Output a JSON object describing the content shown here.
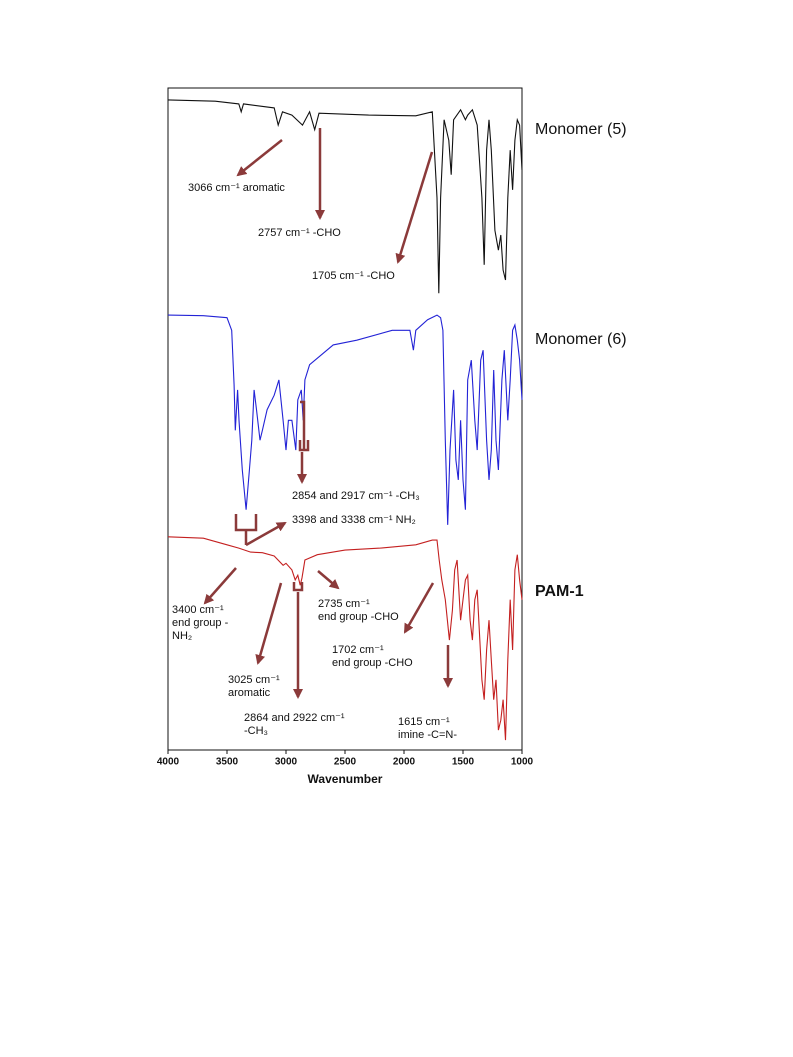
{
  "chart_data": {
    "type": "line",
    "xlabel": "Wavenumber",
    "xlim": [
      4000,
      1000
    ],
    "xticks": [
      4000,
      3500,
      3000,
      2500,
      2000,
      1500,
      1000
    ],
    "ylim": [
      0,
      100
    ],
    "series": [
      {
        "name": "Monomer (5)",
        "color": "#111111",
        "x": [
          4000,
          3600,
          3400,
          3380,
          3360,
          3100,
          3066,
          3030,
          2950,
          2860,
          2800,
          2757,
          2720,
          2300,
          1900,
          1760,
          1720,
          1705,
          1690,
          1660,
          1620,
          1600,
          1580,
          1520,
          1480,
          1460,
          1420,
          1380,
          1340,
          1320,
          1300,
          1280,
          1260,
          1230,
          1200,
          1180,
          1160,
          1140,
          1120,
          1100,
          1080,
          1060,
          1040,
          1020,
          1000
        ],
        "values": [
          98.2,
          98.0,
          97.6,
          96.4,
          97.6,
          97.0,
          94.4,
          96.4,
          95.9,
          94.4,
          96.4,
          93.7,
          96.2,
          95.9,
          95.8,
          96.4,
          83.4,
          69.0,
          83.4,
          95.2,
          92.1,
          86.9,
          95.2,
          96.7,
          95.2,
          95.9,
          96.7,
          94.4,
          83.4,
          73.3,
          90.6,
          95.2,
          90.6,
          78.5,
          75.5,
          77.8,
          72.5,
          71.0,
          83.4,
          90.6,
          84.6,
          92.1,
          95.2,
          94.4,
          87.6
        ]
      },
      {
        "name": "Monomer (6)",
        "color": "#2323d6",
        "x": [
          4000,
          3700,
          3500,
          3460,
          3440,
          3430,
          3410,
          3398,
          3370,
          3338,
          3310,
          3290,
          3270,
          3250,
          3220,
          3200,
          3160,
          3100,
          3060,
          3025,
          3000,
          2980,
          2950,
          2917,
          2900,
          2870,
          2854,
          2840,
          2800,
          2700,
          2600,
          2400,
          2100,
          1950,
          1920,
          1900,
          1800,
          1720,
          1690,
          1670,
          1650,
          1630,
          1610,
          1580,
          1560,
          1540,
          1520,
          1500,
          1480,
          1460,
          1430,
          1400,
          1380,
          1350,
          1330,
          1300,
          1280,
          1260,
          1240,
          1220,
          1200,
          1170,
          1150,
          1120,
          1100,
          1080,
          1060,
          1040,
          1020,
          1000
        ],
        "values": [
          65.7,
          65.6,
          65.3,
          63.4,
          55.1,
          48.3,
          54.4,
          49.8,
          42.3,
          36.3,
          42.3,
          46.8,
          54.4,
          51.4,
          46.8,
          48.3,
          51.4,
          53.6,
          55.9,
          49.8,
          45.3,
          49.8,
          49.8,
          45.3,
          52.9,
          54.4,
          49.8,
          55.9,
          58.2,
          59.7,
          61.2,
          61.9,
          63.4,
          63.4,
          60.4,
          63.4,
          65.0,
          65.7,
          65.3,
          63.4,
          46.8,
          34.0,
          45.3,
          54.4,
          43.8,
          40.8,
          49.8,
          40.8,
          36.3,
          55.9,
          58.9,
          49.8,
          45.3,
          58.9,
          60.4,
          46.8,
          40.8,
          45.3,
          57.4,
          46.8,
          42.3,
          55.9,
          60.4,
          49.8,
          55.9,
          63.4,
          64.2,
          61.9,
          58.9,
          52.9
        ]
      },
      {
        "name": "PAM-1",
        "color": "#c42020",
        "x": [
          4000,
          3700,
          3500,
          3400,
          3300,
          3200,
          3100,
          3025,
          3000,
          2950,
          2922,
          2900,
          2880,
          2864,
          2840,
          2735,
          2500,
          2200,
          1900,
          1760,
          1720,
          1702,
          1680,
          1650,
          1615,
          1590,
          1570,
          1550,
          1520,
          1500,
          1480,
          1460,
          1440,
          1420,
          1400,
          1380,
          1340,
          1320,
          1300,
          1280,
          1260,
          1240,
          1220,
          1200,
          1180,
          1160,
          1140,
          1120,
          1100,
          1080,
          1060,
          1040,
          1020,
          1000
        ],
        "values": [
          32.2,
          32.0,
          31.0,
          30.5,
          29.9,
          29.8,
          29.3,
          27.9,
          28.2,
          27.2,
          25.7,
          26.4,
          24.9,
          26.0,
          28.7,
          29.5,
          30.2,
          30.5,
          31.0,
          31.7,
          31.7,
          28.7,
          25.7,
          22.7,
          16.6,
          21.1,
          27.2,
          28.7,
          19.6,
          22.7,
          25.7,
          26.4,
          19.6,
          16.6,
          22.7,
          24.2,
          10.6,
          7.6,
          15.1,
          19.6,
          13.6,
          7.6,
          10.6,
          3.0,
          4.5,
          7.6,
          1.5,
          13.6,
          22.7,
          15.1,
          27.2,
          29.5,
          25.7,
          22.7
        ]
      }
    ],
    "annotations": [
      {
        "lines": [
          "3066 cm⁻¹ aromatic"
        ]
      },
      {
        "lines": [
          "2757 cm⁻¹ -CHO"
        ]
      },
      {
        "lines": [
          "1705 cm⁻¹ -CHO"
        ]
      },
      {
        "lines": [
          "2854 and 2917 cm⁻¹ -CH₃"
        ]
      },
      {
        "lines": [
          "3398 and 3338 cm⁻¹ NH₂"
        ]
      },
      {
        "lines": [
          "3400 cm⁻¹",
          "end group -",
          "NH₂"
        ]
      },
      {
        "lines": [
          "2735 cm⁻¹",
          "end group -CHO"
        ]
      },
      {
        "lines": [
          "1702 cm⁻¹",
          "end group -CHO"
        ]
      },
      {
        "lines": [
          "3025 cm⁻¹",
          "aromatic"
        ]
      },
      {
        "lines": [
          "2864 and 2922 cm⁻¹",
          "-CH₃"
        ]
      },
      {
        "lines": [
          "1615 cm⁻¹",
          "imine -C=N-"
        ]
      }
    ]
  }
}
